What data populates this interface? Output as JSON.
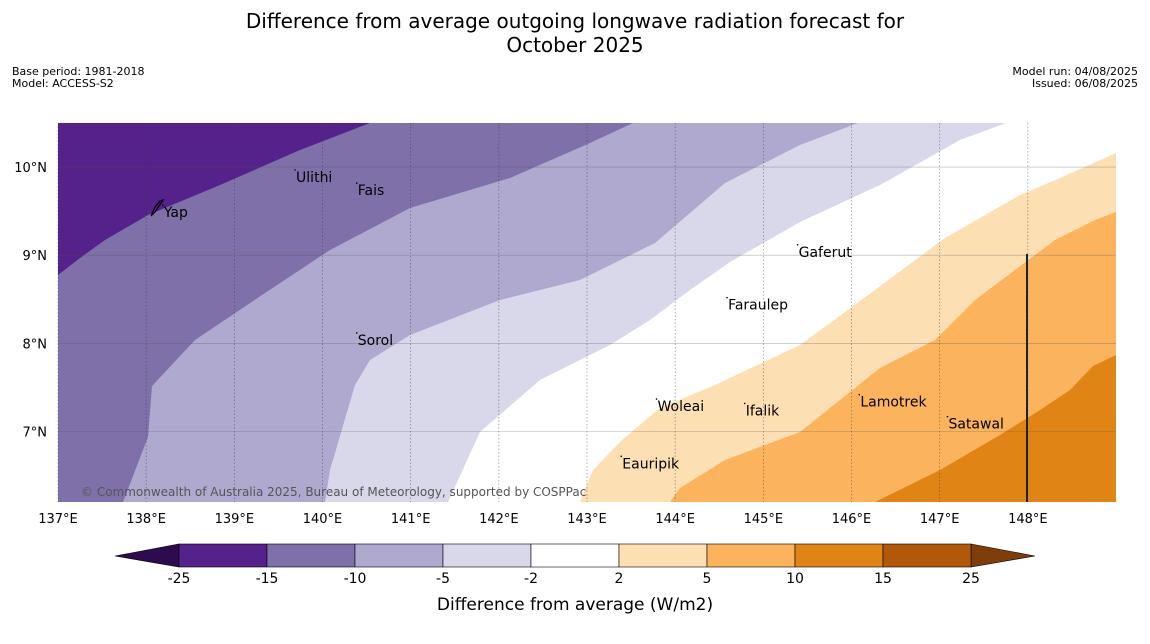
{
  "title": "Difference from average outgoing longwave radiation forecast for October 2025",
  "title_line1": "Difference from average outgoing longwave radiation forecast for",
  "title_line2": "October 2025",
  "meta_left": {
    "base_period": "Base period: 1981-2018",
    "model": "Model: ACCESS-S2"
  },
  "meta_right": {
    "model_run": "Model run: 04/08/2025",
    "issued": "Issued: 06/08/2025"
  },
  "map": {
    "extent": {
      "lon_min": 137,
      "lon_max": 149,
      "lat_min": 6.2,
      "lat_max": 10.5
    },
    "lon_ticks": [
      "137°E",
      "138°E",
      "139°E",
      "140°E",
      "141°E",
      "142°E",
      "143°E",
      "144°E",
      "145°E",
      "146°E",
      "147°E",
      "148°E"
    ],
    "lat_ticks": [
      "10°N",
      "9°N",
      "8°N",
      "7°N"
    ],
    "places": [
      {
        "name": "Ulithi",
        "lon": 139.7,
        "lat": 9.9
      },
      {
        "name": "Fais",
        "lon": 140.4,
        "lat": 9.75
      },
      {
        "name": "Yap",
        "lon": 138.2,
        "lat": 9.5
      },
      {
        "name": "Gaferut",
        "lon": 145.4,
        "lat": 9.05
      },
      {
        "name": "Faraulep",
        "lon": 144.6,
        "lat": 8.45
      },
      {
        "name": "Sorol",
        "lon": 140.4,
        "lat": 8.05
      },
      {
        "name": "Lamotrek",
        "lon": 146.1,
        "lat": 7.35
      },
      {
        "name": "Woleai",
        "lon": 143.8,
        "lat": 7.3
      },
      {
        "name": "Ifalik",
        "lon": 144.8,
        "lat": 7.25
      },
      {
        "name": "Satawal",
        "lon": 147.1,
        "lat": 7.1
      },
      {
        "name": "Eauripik",
        "lon": 143.4,
        "lat": 6.65
      }
    ],
    "credit": "© Commonwealth of Australia 2025, Bureau of Meteorology, supported by COSPPac"
  },
  "colorbar": {
    "title": "Difference from average (W/m2)",
    "boundaries": [
      "-25",
      "-15",
      "-10",
      "-5",
      "-2",
      "2",
      "5",
      "10",
      "15",
      "25"
    ],
    "colors": [
      "#56258a",
      "#54228a",
      "#7f70aa",
      "#afa9d0",
      "#d8d8ea",
      "#ffffff",
      "#fddfb4",
      "#fbb35d",
      "#e08515",
      "#b15809",
      "#7f3d0c"
    ],
    "low_color": "#2d0b4e",
    "high_color": "#7f3d0c"
  }
}
